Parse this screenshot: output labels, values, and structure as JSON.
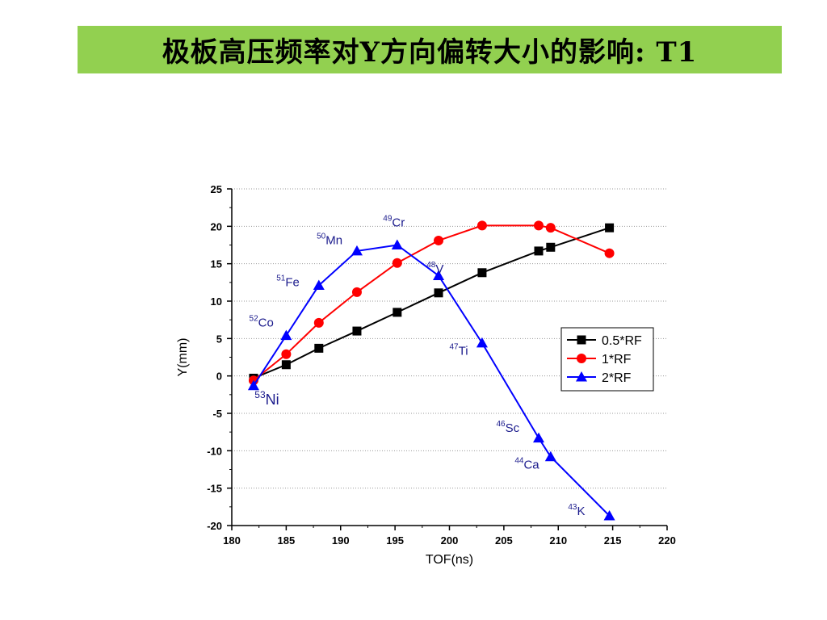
{
  "slide": {
    "title": "极板高压频率对Y方向偏转大小的影响: T1",
    "banner_color": "#92d050"
  },
  "chart_data": {
    "type": "line",
    "xlabel": "TOF(ns)",
    "ylabel": "Y(mm)",
    "xlim": [
      180,
      220
    ],
    "ylim": [
      -20,
      25
    ],
    "x_ticks": [
      180,
      185,
      190,
      195,
      200,
      205,
      210,
      215,
      220
    ],
    "y_ticks": [
      -20,
      -15,
      -10,
      -5,
      0,
      5,
      10,
      15,
      20,
      25
    ],
    "grid": "dotted horizontal",
    "legend_position": "right",
    "series": [
      {
        "name": "0.5*RF",
        "color": "#000000",
        "marker": "square",
        "x": [
          182,
          185,
          188,
          191.5,
          195.2,
          199,
          203,
          208.2,
          209.3,
          214.7
        ],
        "y": [
          -0.3,
          1.5,
          3.7,
          6.0,
          8.5,
          11.1,
          13.8,
          16.7,
          17.2,
          19.8
        ]
      },
      {
        "name": "1*RF",
        "color": "#ff0000",
        "marker": "circle",
        "x": [
          182,
          185,
          188,
          191.5,
          195.2,
          199,
          203,
          208.2,
          209.3,
          214.7
        ],
        "y": [
          -0.6,
          2.9,
          7.1,
          11.2,
          15.1,
          18.1,
          20.1,
          20.1,
          19.8,
          16.4
        ]
      },
      {
        "name": "2*RF",
        "color": "#0000ff",
        "marker": "triangle",
        "x": [
          182,
          185,
          188,
          191.5,
          195.2,
          199,
          203,
          208.2,
          209.3,
          214.7
        ],
        "y": [
          -1.3,
          5.4,
          12.1,
          16.7,
          17.5,
          13.4,
          4.4,
          -8.3,
          -10.8,
          -18.7
        ]
      }
    ],
    "annotations": [
      {
        "sup": "53",
        "text": "Ni",
        "x": 182.1,
        "y": -3.8,
        "size": "large"
      },
      {
        "sup": "52",
        "text": "Co",
        "x": 181.6,
        "y": 6.6,
        "size": "normal"
      },
      {
        "sup": "51",
        "text": "Fe",
        "x": 184.1,
        "y": 12.0,
        "size": "normal"
      },
      {
        "sup": "50",
        "text": "Mn",
        "x": 187.8,
        "y": 17.6,
        "size": "normal"
      },
      {
        "sup": "49",
        "text": "Cr",
        "x": 193.9,
        "y": 20.0,
        "size": "normal"
      },
      {
        "sup": "48",
        "text": "V",
        "x": 197.9,
        "y": 13.8,
        "size": "normal"
      },
      {
        "sup": "47",
        "text": "Ti",
        "x": 200.0,
        "y": 2.8,
        "size": "normal"
      },
      {
        "sup": "46",
        "text": "Sc",
        "x": 204.3,
        "y": -7.5,
        "size": "normal"
      },
      {
        "sup": "44",
        "text": "Ca",
        "x": 206.0,
        "y": -12.4,
        "size": "normal"
      },
      {
        "sup": "43",
        "text": "K",
        "x": 210.9,
        "y": -18.6,
        "size": "normal"
      }
    ]
  }
}
